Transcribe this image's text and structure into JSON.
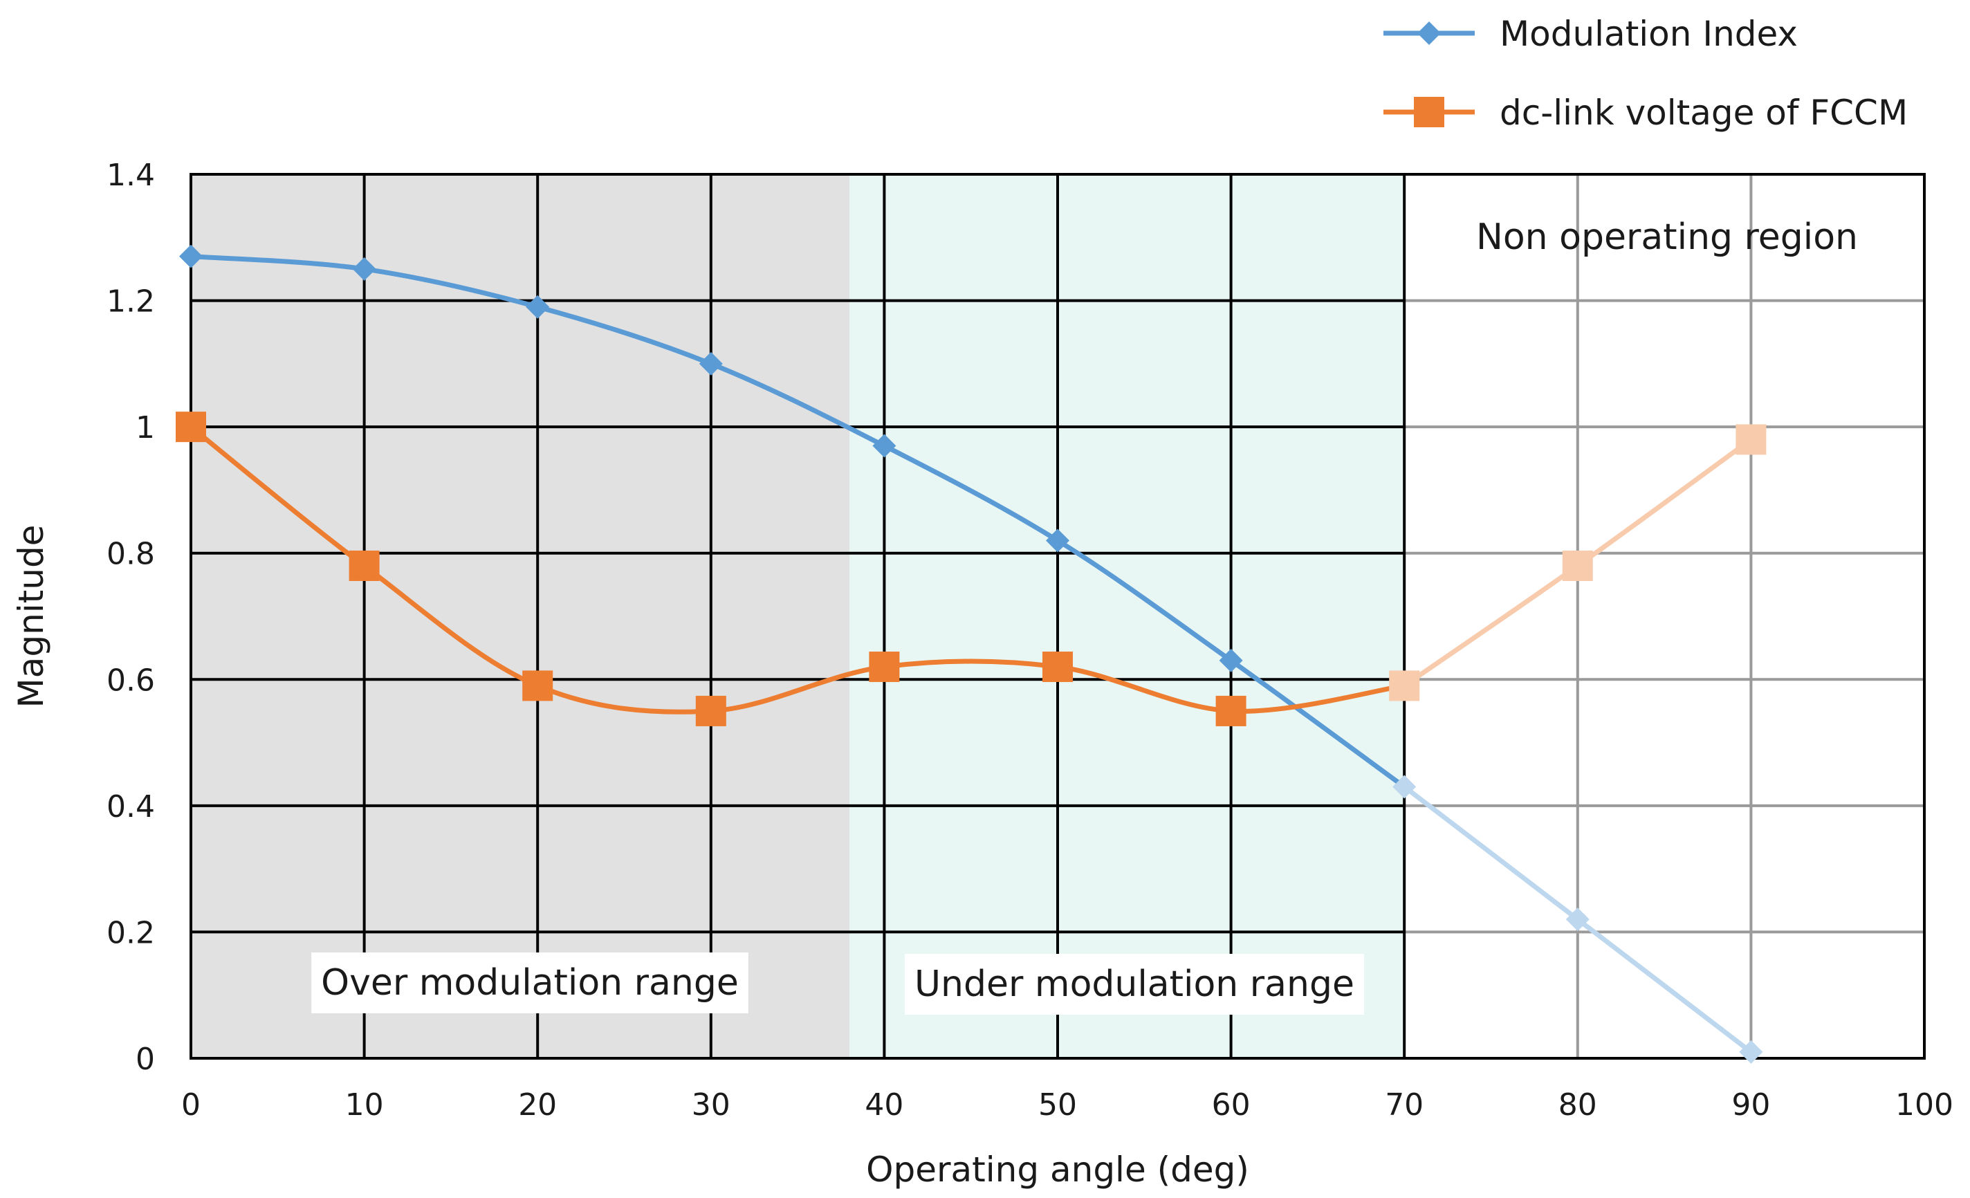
{
  "chart_data": {
    "type": "line",
    "title": "",
    "xlabel": "Operating angle (deg)",
    "ylabel": "Magnitude",
    "xlim": [
      0,
      100
    ],
    "ylim": [
      0,
      1.4
    ],
    "x_ticks": [
      0,
      10,
      20,
      30,
      40,
      50,
      60,
      70,
      80,
      90,
      100
    ],
    "y_ticks": [
      0,
      0.2,
      0.4,
      0.6,
      0.8,
      1,
      1.2,
      1.4
    ],
    "y_tick_labels": [
      "0",
      "0.2",
      "0.4",
      "0.6",
      "0.8",
      "1",
      "1.2",
      "1.4"
    ],
    "grid": true,
    "legend_position": "top-right",
    "series": [
      {
        "name": "Modulation Index",
        "color": "#5b9bd5",
        "faded_color": "#bdd7ee",
        "marker": "diamond",
        "x": [
          0,
          10,
          20,
          30,
          40,
          50,
          60,
          70,
          80,
          90
        ],
        "values": [
          1.27,
          1.25,
          1.19,
          1.1,
          0.97,
          0.82,
          0.63,
          0.43,
          0.22,
          0.01
        ]
      },
      {
        "name": "dc-link voltage of FCCM",
        "color": "#ed7d31",
        "faded_color": "#f8cbad",
        "marker": "square",
        "x": [
          0,
          10,
          20,
          30,
          40,
          50,
          60,
          70,
          80,
          90
        ],
        "values": [
          1.0,
          0.78,
          0.59,
          0.55,
          0.62,
          0.62,
          0.55,
          0.59,
          0.78,
          0.98
        ]
      }
    ],
    "regions": [
      {
        "label": "Over modulation range",
        "x_start": 0,
        "x_end": 38,
        "color": "#e1e1e1"
      },
      {
        "label": "Under modulation range",
        "x_start": 38,
        "x_end": 70,
        "color": "#e8f7f3"
      },
      {
        "label": "Non operating region",
        "x_start": 70,
        "x_end": 100,
        "color": "#ffffff"
      }
    ]
  }
}
